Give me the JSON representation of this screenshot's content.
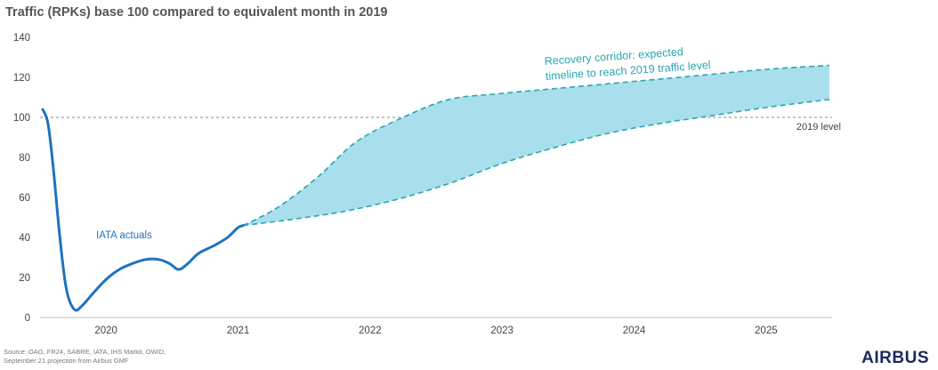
{
  "chart_data": {
    "type": "line",
    "title": "Traffic (RPKs) base 100 compared to equivalent month in 2019",
    "xlabel": "",
    "ylabel": "",
    "ylim": [
      0,
      140
    ],
    "yticks": [
      0,
      20,
      40,
      60,
      80,
      100,
      120,
      140
    ],
    "xlim": [
      2019.5,
      2025.5
    ],
    "xticks": [
      {
        "label": "2020",
        "x": 2020
      },
      {
        "label": "2021",
        "x": 2021
      },
      {
        "label": "2022",
        "x": 2022
      },
      {
        "label": "2023",
        "x": 2023
      },
      {
        "label": "2024",
        "x": 2024
      },
      {
        "label": "2025",
        "x": 2025
      }
    ],
    "grid": false,
    "reference_line": {
      "label": "2019 level",
      "y": 100
    },
    "series": [
      {
        "name": "IATA actuals",
        "color": "#1e73be",
        "points": [
          [
            2019.52,
            104
          ],
          [
            2019.56,
            97
          ],
          [
            2019.6,
            75
          ],
          [
            2019.65,
            40
          ],
          [
            2019.7,
            14
          ],
          [
            2019.76,
            4
          ],
          [
            2019.82,
            6
          ],
          [
            2019.9,
            12
          ],
          [
            2020.0,
            19
          ],
          [
            2020.1,
            24
          ],
          [
            2020.2,
            27
          ],
          [
            2020.3,
            29
          ],
          [
            2020.4,
            29
          ],
          [
            2020.48,
            27
          ],
          [
            2020.55,
            24
          ],
          [
            2020.62,
            27
          ],
          [
            2020.7,
            32
          ],
          [
            2020.82,
            36
          ],
          [
            2020.92,
            40
          ],
          [
            2021.0,
            45
          ],
          [
            2021.04,
            46
          ]
        ]
      },
      {
        "name": "Recovery corridor: expected timeline to reach 2019 traffic level",
        "color": "#2aa6b5",
        "fill": "#a9dfec",
        "upper": [
          [
            2021.04,
            46
          ],
          [
            2021.3,
            55
          ],
          [
            2021.6,
            70
          ],
          [
            2021.9,
            88
          ],
          [
            2022.25,
            100
          ],
          [
            2022.6,
            109
          ],
          [
            2023.0,
            112
          ],
          [
            2023.5,
            115
          ],
          [
            2024.0,
            118
          ],
          [
            2024.5,
            121
          ],
          [
            2025.0,
            124
          ],
          [
            2025.48,
            126
          ]
        ],
        "lower": [
          [
            2021.04,
            46
          ],
          [
            2021.4,
            49
          ],
          [
            2021.8,
            53
          ],
          [
            2022.2,
            59
          ],
          [
            2022.6,
            67
          ],
          [
            2023.0,
            77
          ],
          [
            2023.4,
            85
          ],
          [
            2023.8,
            92
          ],
          [
            2024.2,
            97
          ],
          [
            2024.6,
            101
          ],
          [
            2025.0,
            105
          ],
          [
            2025.48,
            109
          ]
        ]
      }
    ]
  },
  "source_note": {
    "line1": "Source: OAG, FR24, SABRE, IATA, IHS Markit, OWID,",
    "line2": "September 21 projection from Airbus GMF"
  },
  "brand": {
    "name": "AIRBUS"
  }
}
